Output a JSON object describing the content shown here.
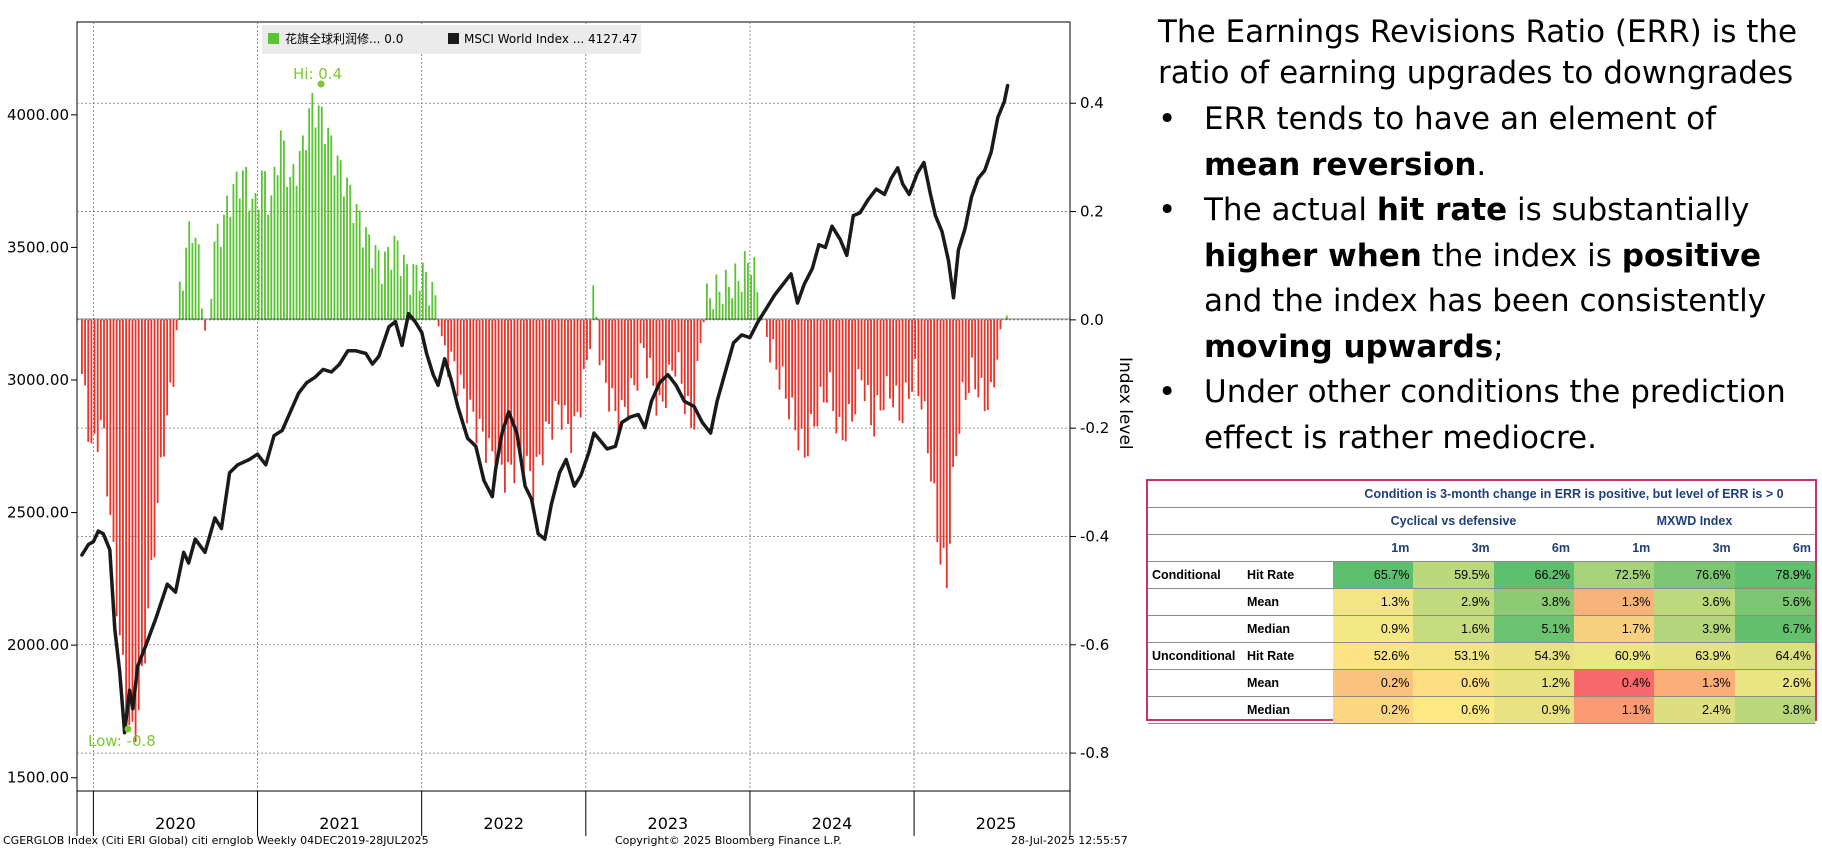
{
  "chart_data": {
    "type": "bar+line",
    "legend": [
      {
        "label": "花旗全球利润修... 0.0",
        "color": "#59c332"
      },
      {
        "label": "MSCI World Index ...  4127.47",
        "color": "#1a1a1a"
      }
    ],
    "ylabel_right": "Index level",
    "left_axis": {
      "range": [
        1450,
        4350
      ],
      "ticks": [
        "4000.00",
        "3500.00",
        "3000.00",
        "2500.00",
        "2000.00",
        "1500.00"
      ]
    },
    "right_axis": {
      "range": [
        -0.87,
        0.55
      ],
      "ticks": [
        "0.4",
        "0.2",
        "0.0",
        "-0.2",
        "-0.4",
        "-0.6",
        "-0.8"
      ]
    },
    "x_labels": [
      "2020",
      "2021",
      "2022",
      "2023",
      "2024",
      "2025"
    ],
    "annotations": {
      "hi": "Hi: 0.4",
      "low": "Low: -0.8"
    },
    "err_series": {
      "name": "花旗全球利润修...",
      "x_start": 2019.93,
      "x_end": 2025.57,
      "keyframes": [
        [
          2019.93,
          -0.1
        ],
        [
          2019.96,
          -0.18
        ],
        [
          2020.0,
          -0.25
        ],
        [
          2020.05,
          -0.18
        ],
        [
          2020.1,
          -0.35
        ],
        [
          2020.15,
          -0.55
        ],
        [
          2020.19,
          -0.68
        ],
        [
          2020.23,
          -0.78
        ],
        [
          2020.28,
          -0.72
        ],
        [
          2020.33,
          -0.55
        ],
        [
          2020.38,
          -0.38
        ],
        [
          2020.43,
          -0.22
        ],
        [
          2020.48,
          -0.12
        ],
        [
          2020.52,
          0.03
        ],
        [
          2020.56,
          0.12
        ],
        [
          2020.6,
          0.18
        ],
        [
          2020.65,
          0.1
        ],
        [
          2020.69,
          -0.07
        ],
        [
          2020.73,
          0.13
        ],
        [
          2020.79,
          0.18
        ],
        [
          2020.85,
          0.24
        ],
        [
          2020.92,
          0.27
        ],
        [
          2020.98,
          0.2
        ],
        [
          2021.03,
          0.27
        ],
        [
          2021.08,
          0.21
        ],
        [
          2021.14,
          0.34
        ],
        [
          2021.2,
          0.25
        ],
        [
          2021.27,
          0.31
        ],
        [
          2021.33,
          0.4
        ],
        [
          2021.4,
          0.37
        ],
        [
          2021.47,
          0.3
        ],
        [
          2021.53,
          0.26
        ],
        [
          2021.6,
          0.2
        ],
        [
          2021.68,
          0.14
        ],
        [
          2021.76,
          0.1
        ],
        [
          2021.84,
          0.14
        ],
        [
          2021.92,
          0.08
        ],
        [
          2022.0,
          0.09
        ],
        [
          2022.08,
          0.04
        ],
        [
          2022.12,
          -0.05
        ],
        [
          2022.2,
          -0.09
        ],
        [
          2022.28,
          -0.16
        ],
        [
          2022.36,
          -0.21
        ],
        [
          2022.44,
          -0.26
        ],
        [
          2022.52,
          -0.29
        ],
        [
          2022.6,
          -0.25
        ],
        [
          2022.68,
          -0.3
        ],
        [
          2022.76,
          -0.21
        ],
        [
          2022.84,
          -0.16
        ],
        [
          2022.92,
          -0.22
        ],
        [
          2023.0,
          -0.1
        ],
        [
          2023.05,
          0.05
        ],
        [
          2023.1,
          -0.1
        ],
        [
          2023.2,
          -0.19
        ],
        [
          2023.3,
          -0.12
        ],
        [
          2023.35,
          -0.05
        ],
        [
          2023.45,
          -0.17
        ],
        [
          2023.55,
          -0.07
        ],
        [
          2023.65,
          -0.21
        ],
        [
          2023.72,
          0.03
        ],
        [
          2023.78,
          0.05
        ],
        [
          2023.85,
          0.06
        ],
        [
          2023.95,
          0.08
        ],
        [
          2024.0,
          0.12
        ],
        [
          2024.05,
          0.05
        ],
        [
          2024.12,
          -0.05
        ],
        [
          2024.2,
          -0.12
        ],
        [
          2024.28,
          -0.2
        ],
        [
          2024.33,
          -0.25
        ],
        [
          2024.4,
          -0.18
        ],
        [
          2024.48,
          -0.12
        ],
        [
          2024.55,
          -0.22
        ],
        [
          2024.62,
          -0.18
        ],
        [
          2024.68,
          -0.1
        ],
        [
          2024.75,
          -0.2
        ],
        [
          2024.8,
          -0.15
        ],
        [
          2024.86,
          -0.13
        ],
        [
          2024.92,
          -0.18
        ],
        [
          2025.0,
          -0.1
        ],
        [
          2025.05,
          -0.15
        ],
        [
          2025.1,
          -0.27
        ],
        [
          2025.15,
          -0.42
        ],
        [
          2025.2,
          -0.48
        ],
        [
          2025.25,
          -0.25
        ],
        [
          2025.3,
          -0.14
        ],
        [
          2025.36,
          -0.1
        ],
        [
          2025.42,
          -0.15
        ],
        [
          2025.47,
          -0.15
        ],
        [
          2025.51,
          -0.05
        ],
        [
          2025.55,
          0.03
        ],
        [
          2025.57,
          0.0
        ]
      ]
    },
    "msci_series": {
      "name": "MSCI World Index",
      "points": [
        [
          2019.93,
          2340
        ],
        [
          2019.97,
          2380
        ],
        [
          2020.0,
          2390
        ],
        [
          2020.03,
          2430
        ],
        [
          2020.06,
          2420
        ],
        [
          2020.1,
          2360
        ],
        [
          2020.13,
          2060
        ],
        [
          2020.16,
          1900
        ],
        [
          2020.19,
          1670
        ],
        [
          2020.22,
          1830
        ],
        [
          2020.24,
          1760
        ],
        [
          2020.27,
          1920
        ],
        [
          2020.32,
          2000
        ],
        [
          2020.38,
          2100
        ],
        [
          2020.45,
          2230
        ],
        [
          2020.5,
          2200
        ],
        [
          2020.55,
          2350
        ],
        [
          2020.58,
          2310
        ],
        [
          2020.62,
          2400
        ],
        [
          2020.68,
          2350
        ],
        [
          2020.74,
          2480
        ],
        [
          2020.78,
          2440
        ],
        [
          2020.83,
          2650
        ],
        [
          2020.88,
          2680
        ],
        [
          2020.95,
          2700
        ],
        [
          2021.0,
          2720
        ],
        [
          2021.05,
          2680
        ],
        [
          2021.1,
          2790
        ],
        [
          2021.15,
          2810
        ],
        [
          2021.2,
          2880
        ],
        [
          2021.25,
          2950
        ],
        [
          2021.3,
          2990
        ],
        [
          2021.35,
          3010
        ],
        [
          2021.4,
          3040
        ],
        [
          2021.45,
          3030
        ],
        [
          2021.5,
          3060
        ],
        [
          2021.55,
          3110
        ],
        [
          2021.6,
          3110
        ],
        [
          2021.66,
          3100
        ],
        [
          2021.7,
          3060
        ],
        [
          2021.74,
          3090
        ],
        [
          2021.8,
          3200
        ],
        [
          2021.84,
          3220
        ],
        [
          2021.88,
          3130
        ],
        [
          2021.92,
          3250
        ],
        [
          2021.96,
          3220
        ],
        [
          2022.0,
          3180
        ],
        [
          2022.03,
          3100
        ],
        [
          2022.07,
          3020
        ],
        [
          2022.1,
          2980
        ],
        [
          2022.14,
          3080
        ],
        [
          2022.18,
          3000
        ],
        [
          2022.22,
          2900
        ],
        [
          2022.28,
          2780
        ],
        [
          2022.33,
          2750
        ],
        [
          2022.38,
          2620
        ],
        [
          2022.43,
          2560
        ],
        [
          2022.45,
          2660
        ],
        [
          2022.49,
          2800
        ],
        [
          2022.53,
          2880
        ],
        [
          2022.58,
          2800
        ],
        [
          2022.63,
          2600
        ],
        [
          2022.67,
          2550
        ],
        [
          2022.71,
          2420
        ],
        [
          2022.75,
          2400
        ],
        [
          2022.79,
          2530
        ],
        [
          2022.84,
          2650
        ],
        [
          2022.88,
          2700
        ],
        [
          2022.93,
          2600
        ],
        [
          2022.97,
          2640
        ],
        [
          2023.02,
          2730
        ],
        [
          2023.05,
          2800
        ],
        [
          2023.09,
          2770
        ],
        [
          2023.13,
          2740
        ],
        [
          2023.18,
          2750
        ],
        [
          2023.22,
          2840
        ],
        [
          2023.27,
          2860
        ],
        [
          2023.32,
          2870
        ],
        [
          2023.36,
          2820
        ],
        [
          2023.4,
          2920
        ],
        [
          2023.45,
          2990
        ],
        [
          2023.5,
          3020
        ],
        [
          2023.55,
          2980
        ],
        [
          2023.6,
          2920
        ],
        [
          2023.66,
          2900
        ],
        [
          2023.71,
          2840
        ],
        [
          2023.76,
          2800
        ],
        [
          2023.8,
          2920
        ],
        [
          2023.85,
          3030
        ],
        [
          2023.9,
          3140
        ],
        [
          2023.95,
          3170
        ],
        [
          2024.0,
          3160
        ],
        [
          2024.05,
          3220
        ],
        [
          2024.1,
          3270
        ],
        [
          2024.15,
          3320
        ],
        [
          2024.2,
          3360
        ],
        [
          2024.25,
          3400
        ],
        [
          2024.29,
          3290
        ],
        [
          2024.33,
          3360
        ],
        [
          2024.38,
          3420
        ],
        [
          2024.42,
          3510
        ],
        [
          2024.46,
          3500
        ],
        [
          2024.5,
          3580
        ],
        [
          2024.55,
          3530
        ],
        [
          2024.59,
          3470
        ],
        [
          2024.63,
          3620
        ],
        [
          2024.67,
          3630
        ],
        [
          2024.72,
          3680
        ],
        [
          2024.77,
          3720
        ],
        [
          2024.82,
          3700
        ],
        [
          2024.86,
          3760
        ],
        [
          2024.9,
          3800
        ],
        [
          2024.93,
          3740
        ],
        [
          2024.97,
          3700
        ],
        [
          2025.02,
          3780
        ],
        [
          2025.06,
          3820
        ],
        [
          2025.1,
          3700
        ],
        [
          2025.13,
          3620
        ],
        [
          2025.17,
          3560
        ],
        [
          2025.21,
          3450
        ],
        [
          2025.24,
          3310
        ],
        [
          2025.27,
          3490
        ],
        [
          2025.31,
          3570
        ],
        [
          2025.35,
          3690
        ],
        [
          2025.39,
          3760
        ],
        [
          2025.43,
          3790
        ],
        [
          2025.47,
          3860
        ],
        [
          2025.51,
          3990
        ],
        [
          2025.55,
          4050
        ],
        [
          2025.57,
          4110
        ]
      ]
    }
  },
  "footer": {
    "left": "CGERGLOB Index (Citi ERI Global) citi ernglob  Weekly 04DEC2019-28JUL2025",
    "center": "Copyright© 2025 Bloomberg Finance L.P.",
    "right": "28-Jul-2025 12:55:57"
  },
  "text": {
    "intro": "The Earnings Revisions Ratio (ERR) is the ratio of earning upgrades to downgrades",
    "bullet1_a": "ERR tends to have an element of ",
    "bullet1_b": "mean reversion",
    "bullet1_c": ".",
    "bullet2_a": "The actual ",
    "bullet2_b": "hit rate",
    "bullet2_c": " is substantially ",
    "bullet2_d": "higher when",
    "bullet2_e": " the index is ",
    "bullet2_f": "positive",
    "bullet2_g": " and the index has been consistently ",
    "bullet2_h": "moving upwards",
    "bullet2_i": ";",
    "bullet3": "Under other conditions the prediction effect is rather mediocre.",
    "bullet_symbol": "•"
  },
  "table": {
    "title": "Condition is 3-month change in ERR is positive, but level of ERR is > 0",
    "group1": "Cyclical vs defensive",
    "group2": "MXWD Index",
    "periods": [
      "1m",
      "3m",
      "6m",
      "1m",
      "3m",
      "6m"
    ],
    "rows": [
      {
        "group": "Conditional",
        "metric": "Hit Rate",
        "values": [
          "65.7%",
          "59.5%",
          "66.2%",
          "72.5%",
          "76.6%",
          "78.9%"
        ],
        "colors": [
          "#5cbf6d",
          "#b9d97b",
          "#5cbf6d",
          "#a6d27a",
          "#7cc673",
          "#60c06d"
        ]
      },
      {
        "group": "",
        "metric": "Mean",
        "values": [
          "1.3%",
          "2.9%",
          "3.8%",
          "1.3%",
          "3.6%",
          "5.6%"
        ],
        "colors": [
          "#f3e585",
          "#c2da7e",
          "#8cca74",
          "#f7b27a",
          "#bcd97c",
          "#7cc673"
        ]
      },
      {
        "group": "",
        "metric": "Median",
        "values": [
          "0.9%",
          "1.6%",
          "5.1%",
          "1.7%",
          "3.9%",
          "6.7%"
        ],
        "colors": [
          "#f4e885",
          "#c6dc7e",
          "#6cc36f",
          "#f9d081",
          "#b4d67b",
          "#63c06d"
        ]
      },
      {
        "group": "Unconditional",
        "metric": "Hit Rate",
        "values": [
          "52.6%",
          "53.1%",
          "54.3%",
          "60.9%",
          "63.9%",
          "64.4%"
        ],
        "colors": [
          "#fce383",
          "#f3e585",
          "#e8e283",
          "#eee584",
          "#e4e283",
          "#dbe082"
        ]
      },
      {
        "group": "",
        "metric": "Mean",
        "values": [
          "0.2%",
          "0.6%",
          "1.2%",
          "0.4%",
          "1.3%",
          "2.6%"
        ],
        "colors": [
          "#fbc47e",
          "#fbdf82",
          "#e8e283",
          "#f8696b",
          "#fbae78",
          "#eae483"
        ]
      },
      {
        "group": "",
        "metric": "Median",
        "values": [
          "0.2%",
          "0.6%",
          "0.9%",
          "1.1%",
          "2.4%",
          "3.8%"
        ],
        "colors": [
          "#fdd682",
          "#fde984",
          "#e8e283",
          "#fa9a74",
          "#ddde81",
          "#b9d87c"
        ]
      }
    ]
  }
}
